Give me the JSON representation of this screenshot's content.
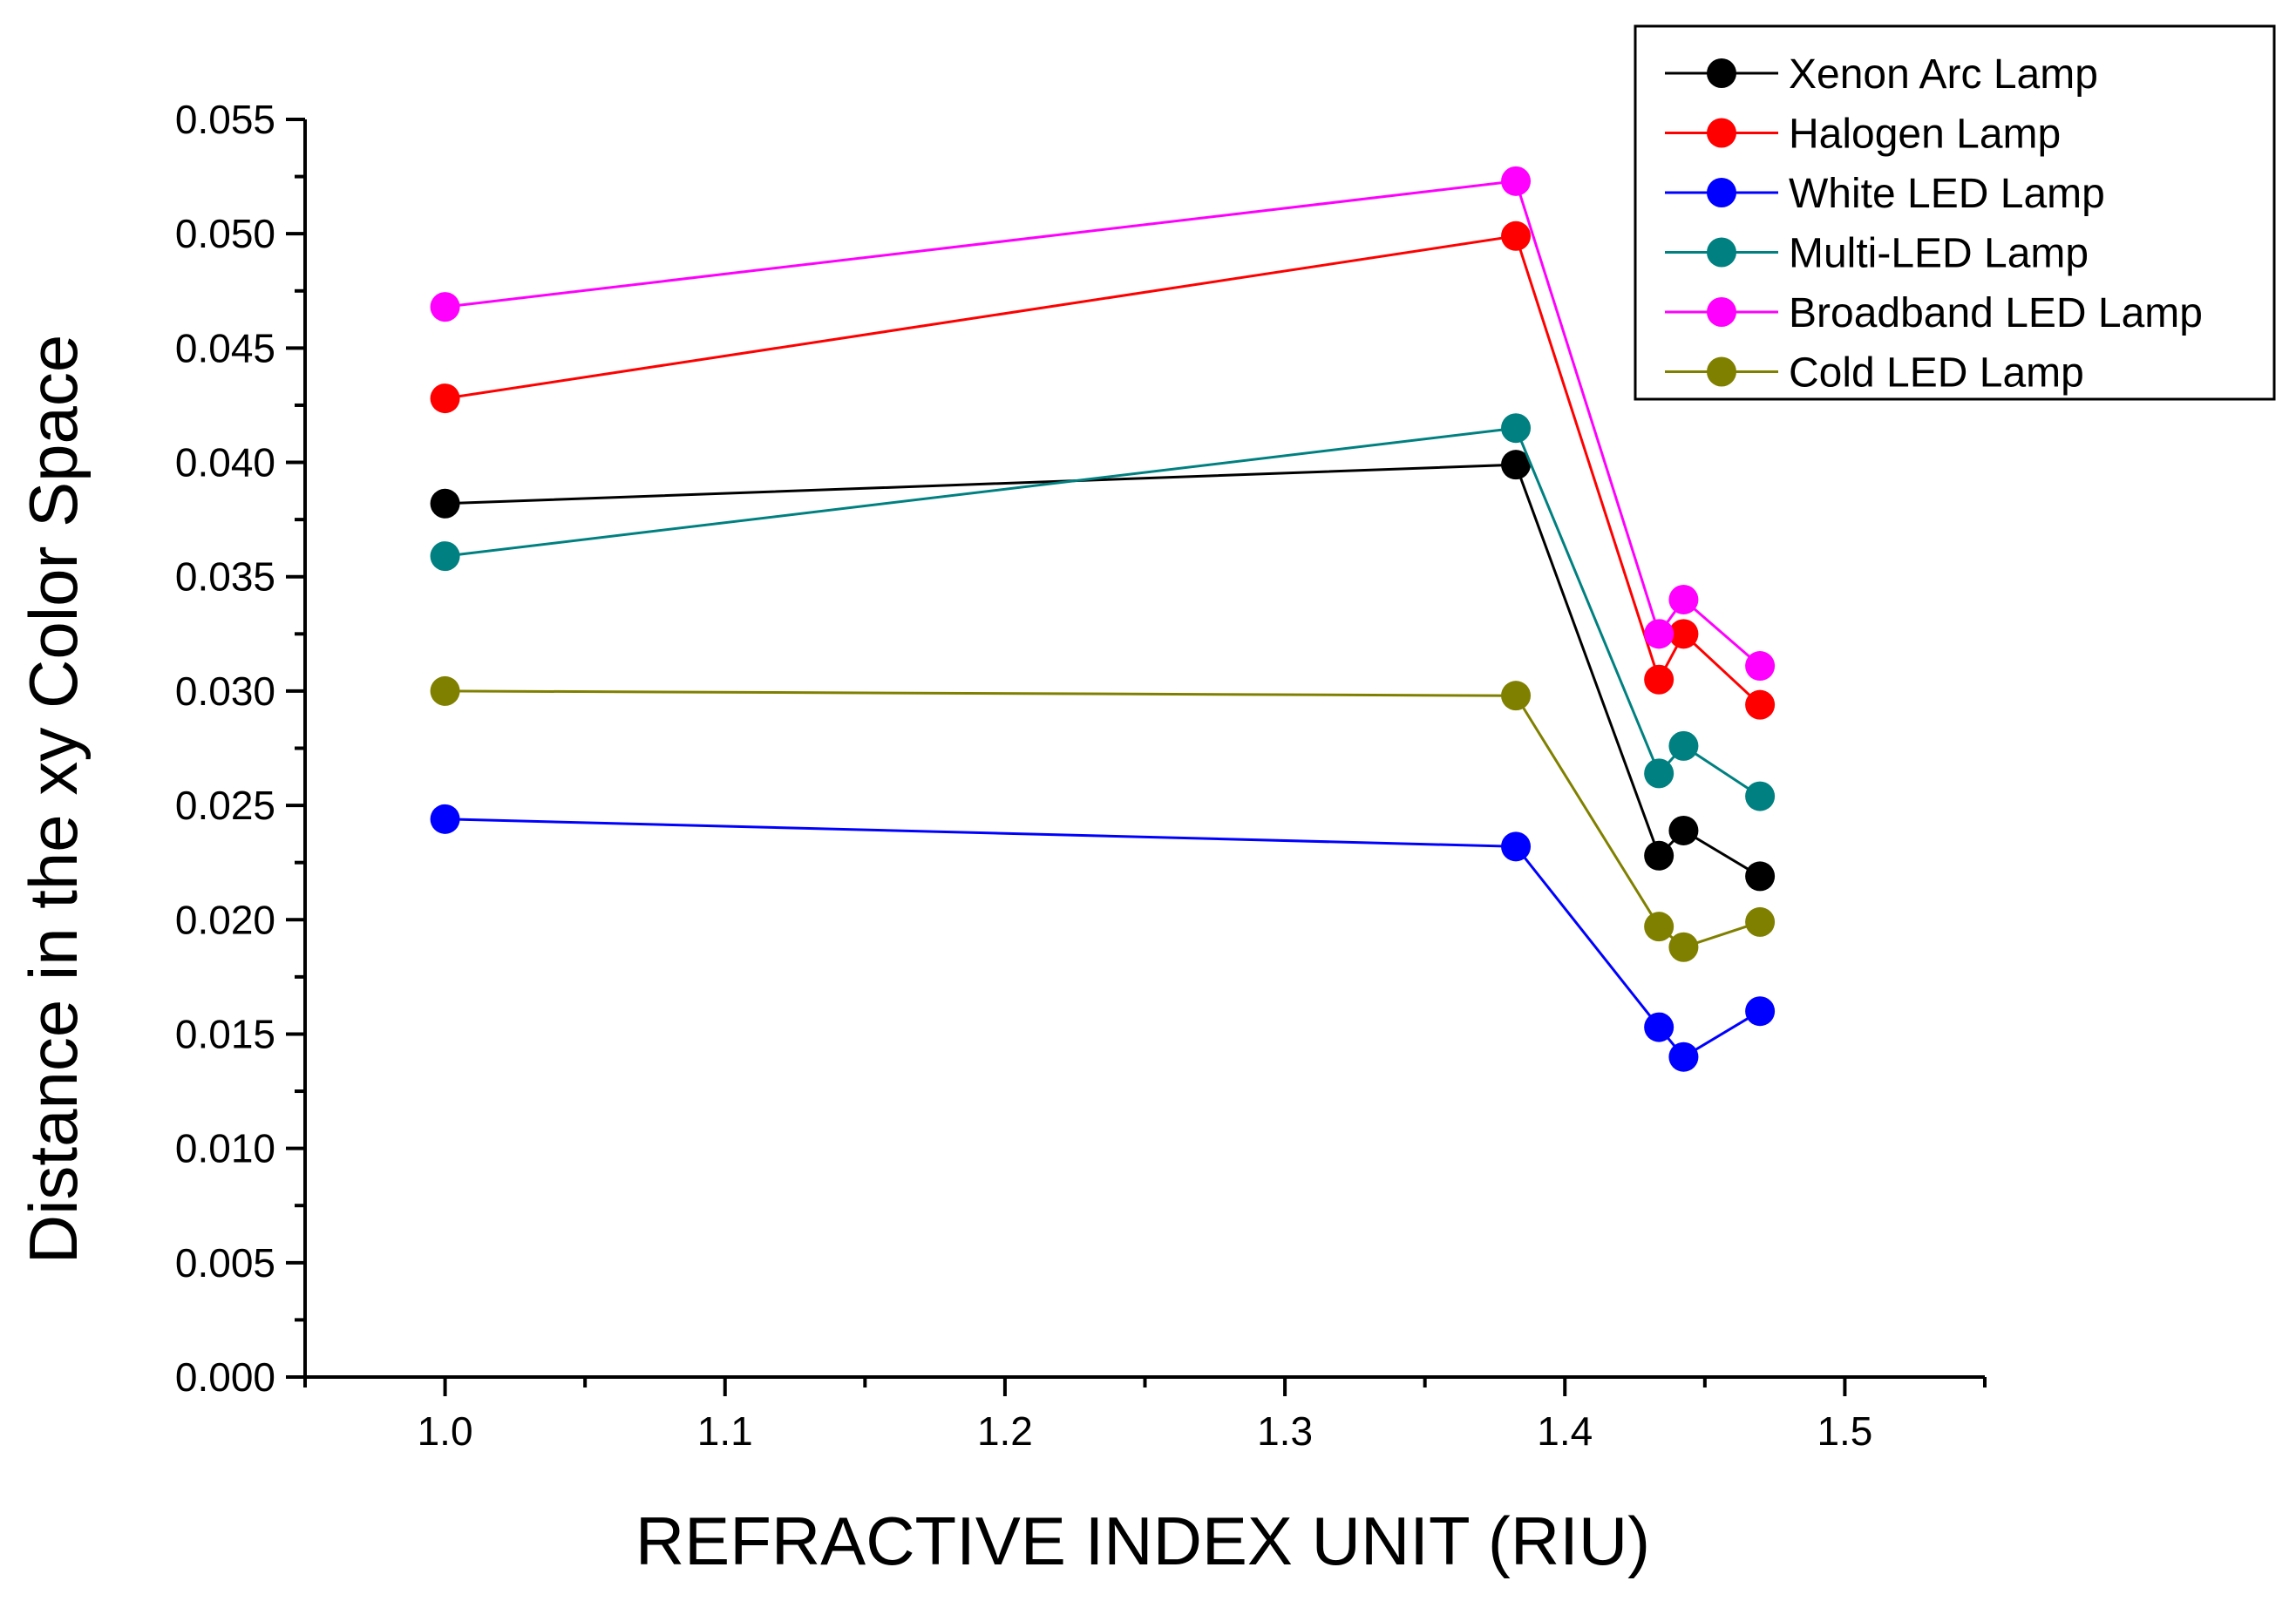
{
  "chart_data": {
    "type": "line",
    "title": "",
    "xlabel": "REFRACTIVE INDEX UNIT (RIU)",
    "ylabel": "Distance in the xy Color Space",
    "xlim": [
      0.95,
      1.55
    ],
    "ylim": [
      0.0,
      0.055
    ],
    "xticks": [
      "1.0",
      "1.1",
      "1.2",
      "1.3",
      "1.4",
      "1.5"
    ],
    "yticks": [
      "0.000",
      "0.005",
      "0.010",
      "0.015",
      "0.020",
      "0.025",
      "0.030",
      "0.035",
      "0.040",
      "0.045",
      "0.050",
      "0.055"
    ],
    "grid": false,
    "legend_position": "top-right",
    "x": [
      1.0,
      1.3825,
      1.4336,
      1.4424,
      1.4697
    ],
    "series": [
      {
        "name": "Xenon Arc Lamp",
        "color": "#000000",
        "values": [
          0.0382,
          0.0399,
          0.0228,
          0.0239,
          0.0219
        ]
      },
      {
        "name": "Halogen Lamp",
        "color": "#ff0000",
        "values": [
          0.0428,
          0.0499,
          0.0305,
          0.0325,
          0.0294
        ]
      },
      {
        "name": "White LED Lamp",
        "color": "#0000ff",
        "values": [
          0.0244,
          0.0232,
          0.0153,
          0.014,
          0.016
        ]
      },
      {
        "name": "Multi-LED Lamp",
        "color": "#008080",
        "values": [
          0.0359,
          0.0415,
          0.0264,
          0.0276,
          0.0254
        ]
      },
      {
        "name": "Broadband LED Lamp",
        "color": "#ff00ff",
        "values": [
          0.0468,
          0.0523,
          0.0325,
          0.034,
          0.0311
        ]
      },
      {
        "name": "Cold LED Lamp",
        "color": "#808000",
        "values": [
          0.03,
          0.0298,
          0.0197,
          0.0188,
          0.0199
        ]
      }
    ]
  }
}
